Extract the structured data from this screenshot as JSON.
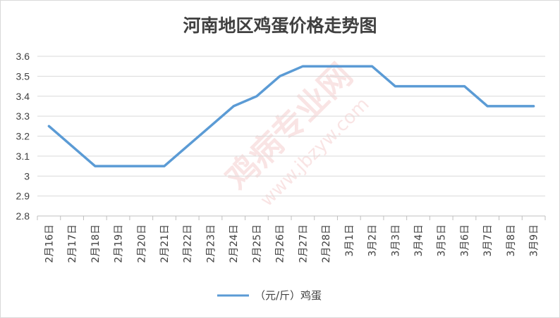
{
  "chart_data": {
    "type": "line",
    "title": "河南地区鸡蛋价格走势图",
    "categories": [
      "2月16日",
      "2月17日",
      "2月18日",
      "2月19日",
      "2月20日",
      "2月21日",
      "2月22日",
      "2月23日",
      "2月24日",
      "2月25日",
      "2月26日",
      "2月27日",
      "2月28日",
      "3月1日",
      "3月2日",
      "3月3日",
      "3月4日",
      "3月5日",
      "3月6日",
      "3月7日",
      "3月8日",
      "3月9日"
    ],
    "series": [
      {
        "name": "（元/斤）鸡蛋",
        "values": [
          3.25,
          3.15,
          3.05,
          3.05,
          3.05,
          3.05,
          3.15,
          3.25,
          3.35,
          3.4,
          3.5,
          3.55,
          3.55,
          3.55,
          3.55,
          3.45,
          3.45,
          3.45,
          3.45,
          3.35,
          3.35,
          3.35
        ]
      }
    ],
    "yticks": [
      "2.8",
      "2.9",
      "3",
      "3.1",
      "3.2",
      "3.3",
      "3.4",
      "3.5",
      "3.6"
    ],
    "ylim": [
      2.8,
      3.6
    ],
    "xlabel": "",
    "ylabel": "",
    "grid": true,
    "legend_position": "bottom",
    "colors": {
      "line": "#5b9bd5",
      "grid": "#d9d9d9",
      "axis": "#bfbfbf",
      "text": "#404040"
    }
  },
  "watermark": {
    "text": "鸡病专业网",
    "url": "www.jbzyw.com"
  }
}
